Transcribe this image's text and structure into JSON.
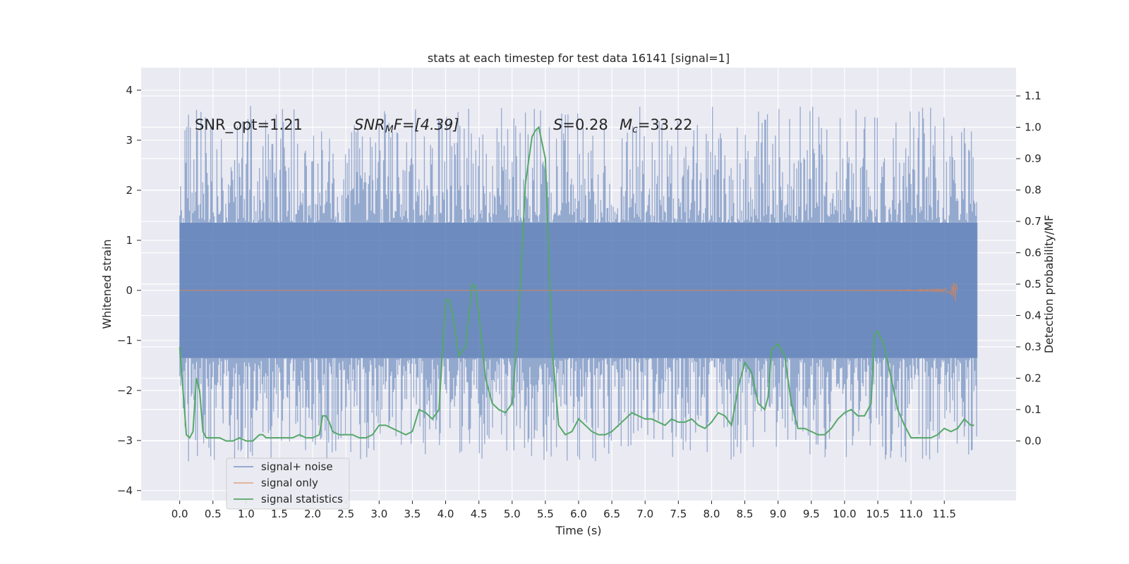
{
  "chart_data": {
    "type": "line",
    "title": "stats at each timestep for test data 16141 [signal=1]",
    "xlabel": "Time (s)",
    "ylabel": "Whitened strain",
    "ylabel_right": "Detection probability/MF",
    "xlim": [
      -0.58,
      12.58
    ],
    "ylim": [
      -4.2,
      4.45
    ],
    "ylim_right": [
      -0.19,
      1.19
    ],
    "x_ticks": [
      "0.0",
      "0.5",
      "1.0",
      "1.5",
      "2.0",
      "2.5",
      "3.0",
      "3.5",
      "4.0",
      "4.5",
      "5.0",
      "5.5",
      "6.0",
      "6.5",
      "7.0",
      "7.5",
      "8.0",
      "8.5",
      "9.0",
      "9.5",
      "10.0",
      "10.5",
      "11.0",
      "11.5"
    ],
    "y_ticks": [
      "4",
      "3",
      "2",
      "1",
      "0",
      "−1",
      "−2",
      "−3",
      "−4"
    ],
    "y_ticks_right": [
      "1.1",
      "1.0",
      "0.9",
      "0.8",
      "0.7",
      "0.6",
      "0.5",
      "0.4",
      "0.3",
      "0.2",
      "0.1",
      "0.0"
    ],
    "colors": {
      "background": "#eaeaf2",
      "grid": "#ffffff",
      "noise": "#4c72b0",
      "signal": "#dd8452",
      "statistics": "#55a868"
    },
    "annotations": {
      "snr_opt": "SNR_opt=1.21",
      "snr_mf_prefix": "SNR",
      "snr_mf_sub": "M",
      "snr_mf_rest": "F=[4.39]",
      "s_symbol": "S",
      "s_value": "=0.28",
      "mc_symbol": "M",
      "mc_sub": "c",
      "mc_value": "=33.22"
    },
    "series": [
      {
        "name": "signal+ noise",
        "axis": "left",
        "style": "dense noise band",
        "x_range": [
          0.0,
          12.0
        ],
        "envelope_y": [
          -3.8,
          4.1
        ],
        "core_band_y": [
          -1.35,
          1.35
        ]
      },
      {
        "name": "signal only",
        "axis": "left",
        "style": "chirp",
        "x_range": [
          0.0,
          11.7
        ],
        "peak_x": 11.65,
        "peak_amplitude": 0.35
      },
      {
        "name": "signal statistics",
        "axis": "right",
        "x": [
          0.0,
          0.1,
          0.15,
          0.2,
          0.25,
          0.3,
          0.35,
          0.4,
          0.45,
          0.5,
          0.6,
          0.7,
          0.8,
          0.9,
          1.0,
          1.1,
          1.15,
          1.2,
          1.25,
          1.3,
          1.4,
          1.5,
          1.6,
          1.7,
          1.8,
          1.9,
          2.0,
          2.1,
          2.15,
          2.2,
          2.25,
          2.3,
          2.4,
          2.5,
          2.6,
          2.7,
          2.8,
          2.9,
          3.0,
          3.1,
          3.2,
          3.3,
          3.4,
          3.5,
          3.6,
          3.7,
          3.8,
          3.9,
          4.0,
          4.05,
          4.1,
          4.2,
          4.3,
          4.4,
          4.45,
          4.5,
          4.6,
          4.7,
          4.8,
          4.9,
          5.0,
          5.1,
          5.2,
          5.3,
          5.35,
          5.4,
          5.5,
          5.6,
          5.7,
          5.8,
          5.9,
          6.0,
          6.1,
          6.2,
          6.3,
          6.4,
          6.5,
          6.6,
          6.7,
          6.8,
          6.9,
          7.0,
          7.1,
          7.2,
          7.3,
          7.4,
          7.5,
          7.6,
          7.7,
          7.8,
          7.9,
          8.0,
          8.1,
          8.2,
          8.3,
          8.4,
          8.5,
          8.6,
          8.7,
          8.8,
          8.85,
          8.9,
          9.0,
          9.1,
          9.2,
          9.3,
          9.4,
          9.5,
          9.6,
          9.7,
          9.8,
          9.9,
          10.0,
          10.1,
          10.2,
          10.3,
          10.4,
          10.45,
          10.5,
          10.6,
          10.7,
          10.8,
          10.9,
          11.0,
          11.1,
          11.2,
          11.3,
          11.4,
          11.5,
          11.6,
          11.7,
          11.8,
          11.9,
          11.95
        ],
        "y": [
          0.3,
          0.02,
          0.01,
          0.03,
          0.2,
          0.16,
          0.03,
          0.01,
          0.01,
          0.01,
          0.01,
          0.0,
          0.0,
          0.01,
          0.0,
          0.0,
          0.01,
          0.02,
          0.02,
          0.01,
          0.01,
          0.01,
          0.01,
          0.01,
          0.02,
          0.01,
          0.01,
          0.02,
          0.08,
          0.08,
          0.06,
          0.03,
          0.02,
          0.02,
          0.02,
          0.01,
          0.01,
          0.02,
          0.05,
          0.05,
          0.04,
          0.03,
          0.02,
          0.03,
          0.1,
          0.09,
          0.07,
          0.1,
          0.45,
          0.45,
          0.41,
          0.27,
          0.3,
          0.5,
          0.49,
          0.4,
          0.2,
          0.12,
          0.1,
          0.09,
          0.12,
          0.4,
          0.82,
          0.97,
          0.99,
          1.0,
          0.9,
          0.3,
          0.05,
          0.02,
          0.03,
          0.07,
          0.05,
          0.03,
          0.02,
          0.02,
          0.03,
          0.05,
          0.07,
          0.09,
          0.08,
          0.07,
          0.07,
          0.06,
          0.05,
          0.07,
          0.06,
          0.06,
          0.07,
          0.05,
          0.04,
          0.06,
          0.09,
          0.08,
          0.05,
          0.17,
          0.25,
          0.22,
          0.12,
          0.1,
          0.14,
          0.29,
          0.31,
          0.27,
          0.12,
          0.04,
          0.04,
          0.03,
          0.02,
          0.02,
          0.04,
          0.07,
          0.09,
          0.1,
          0.08,
          0.08,
          0.12,
          0.34,
          0.35,
          0.3,
          0.2,
          0.1,
          0.05,
          0.01,
          0.01,
          0.01,
          0.01,
          0.02,
          0.04,
          0.03,
          0.04,
          0.07,
          0.05,
          0.05
        ]
      }
    ],
    "legend": {
      "placement": "lower-left",
      "entries": [
        "signal+ noise",
        "signal only",
        "signal statistics"
      ]
    },
    "grid": true
  }
}
